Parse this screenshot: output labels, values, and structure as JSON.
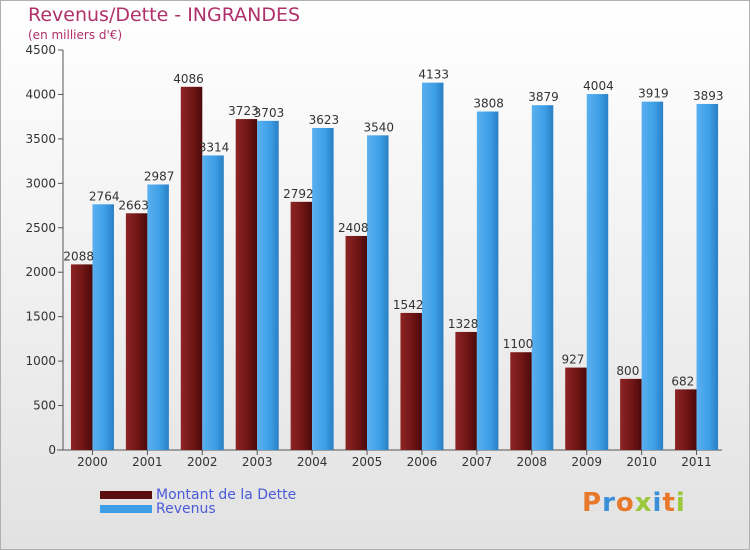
{
  "chart_data": {
    "type": "bar",
    "title": "Revenus/Dette - INGRANDES",
    "subtitle": "(en milliers d'€)",
    "categories": [
      "2000",
      "2001",
      "2002",
      "2003",
      "2004",
      "2005",
      "2006",
      "2007",
      "2008",
      "2009",
      "2010",
      "2011"
    ],
    "series": [
      {
        "name": "Montant de la Dette",
        "color": "#7a1a1a",
        "values": [
          2088,
          2663,
          4086,
          3723,
          2792,
          2408,
          1542,
          1328,
          1100,
          927,
          800,
          682
        ]
      },
      {
        "name": "Revenus",
        "color": "#3d9ee6",
        "values": [
          2764,
          2987,
          3314,
          3703,
          3623,
          3540,
          4133,
          3808,
          3879,
          4004,
          3919,
          3893
        ]
      }
    ],
    "ylim": [
      0,
      4500
    ],
    "yticks": [
      0,
      500,
      1000,
      1500,
      2000,
      2500,
      3000,
      3500,
      4000,
      4500
    ],
    "xlabel": "",
    "ylabel": "",
    "grid": false,
    "legend": "bottom-left"
  },
  "logo": {
    "text": "Proxiti",
    "colors": [
      "#e8782a",
      "#3a8fd8",
      "#e8782a",
      "#9ac83a",
      "#3a8fd8",
      "#e8782a",
      "#9ac83a"
    ]
  }
}
